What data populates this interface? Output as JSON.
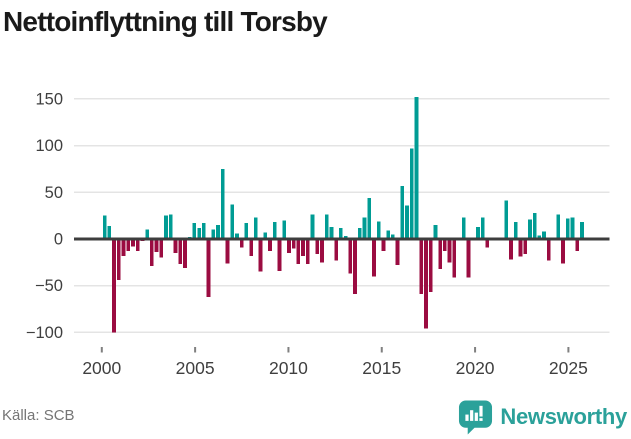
{
  "title": "Nettoinflyttning till Torsby",
  "footer": {
    "source": "Källa: SCB",
    "brand": "Newsworthy"
  },
  "colors": {
    "positive": "#009c94",
    "negative": "#9b0c41",
    "grid": "#e4e4e4",
    "zero_line": "#3d3d3d",
    "axis_text": "#3f3f3f",
    "tick": "#808080",
    "title_text": "#1a1a1a",
    "source_text": "#757575",
    "brand_teal": "#2ba19a"
  },
  "chart_data": {
    "type": "bar",
    "title": "Nettoinflyttning till Torsby",
    "xlabel": "",
    "ylabel": "",
    "ylim": [
      -100,
      150
    ],
    "yticks": [
      150,
      100,
      50,
      0,
      -50,
      -100
    ],
    "xticks": [
      "2000",
      "2005",
      "2010",
      "2015",
      "2020",
      "2025"
    ],
    "grid": "horizontal",
    "legend": "none",
    "frequency": "quarterly",
    "x": [
      "2000Q1",
      "2000Q2",
      "2000Q3",
      "2000Q4",
      "2001Q1",
      "2001Q2",
      "2001Q3",
      "2001Q4",
      "2002Q1",
      "2002Q2",
      "2002Q3",
      "2002Q4",
      "2003Q1",
      "2003Q2",
      "2003Q3",
      "2003Q4",
      "2004Q1",
      "2004Q2",
      "2004Q3",
      "2004Q4",
      "2005Q1",
      "2005Q2",
      "2005Q3",
      "2005Q4",
      "2006Q1",
      "2006Q2",
      "2006Q3",
      "2006Q4",
      "2007Q1",
      "2007Q2",
      "2007Q3",
      "2007Q4",
      "2008Q1",
      "2008Q2",
      "2008Q3",
      "2008Q4",
      "2009Q1",
      "2009Q2",
      "2009Q3",
      "2009Q4",
      "2010Q1",
      "2010Q2",
      "2010Q3",
      "2010Q4",
      "2011Q1",
      "2011Q2",
      "2011Q3",
      "2011Q4",
      "2012Q1",
      "2012Q2",
      "2012Q3",
      "2012Q4",
      "2013Q1",
      "2013Q2",
      "2013Q3",
      "2013Q4",
      "2014Q1",
      "2014Q2",
      "2014Q3",
      "2014Q4",
      "2015Q1",
      "2015Q2",
      "2015Q3",
      "2015Q4",
      "2016Q1",
      "2016Q2",
      "2016Q3",
      "2016Q4",
      "2017Q1",
      "2017Q2",
      "2017Q3",
      "2017Q4",
      "2018Q1",
      "2018Q2",
      "2018Q3",
      "2018Q4",
      "2019Q1",
      "2019Q2",
      "2019Q3",
      "2019Q4",
      "2020Q1",
      "2020Q2",
      "2020Q3",
      "2020Q4",
      "2021Q1",
      "2021Q2",
      "2021Q3",
      "2021Q4",
      "2022Q1",
      "2022Q2",
      "2022Q3",
      "2022Q4",
      "2023Q1",
      "2023Q2",
      "2023Q3",
      "2023Q4",
      "2024Q1",
      "2024Q2",
      "2024Q3",
      "2024Q4",
      "2025Q1",
      "2025Q2"
    ],
    "values": [
      25,
      14,
      -100,
      -44,
      -18,
      -13,
      -8,
      -13,
      -2,
      10,
      -29,
      -14,
      -20,
      25,
      26,
      -15,
      -27,
      -31,
      2,
      17,
      12,
      17,
      -62,
      10,
      15,
      75,
      -26,
      37,
      6,
      -9,
      17,
      -18,
      23,
      -35,
      7,
      -13,
      18,
      -34,
      20,
      -15,
      -10,
      -27,
      -18,
      -27,
      26,
      -16,
      -25,
      26,
      13,
      -23,
      12,
      3,
      -37,
      -59,
      12,
      23,
      44,
      -40,
      19,
      -13,
      9,
      5,
      -28,
      57,
      36,
      97,
      152,
      -59,
      -96,
      -57,
      15,
      -32,
      -13,
      -25,
      -41,
      0,
      23,
      -41,
      0,
      13,
      23,
      -9,
      0,
      0,
      0,
      41,
      -22,
      18,
      -19,
      -16,
      21,
      28,
      4,
      8,
      -23,
      0,
      26,
      -26,
      22,
      23,
      -13,
      18
    ]
  }
}
